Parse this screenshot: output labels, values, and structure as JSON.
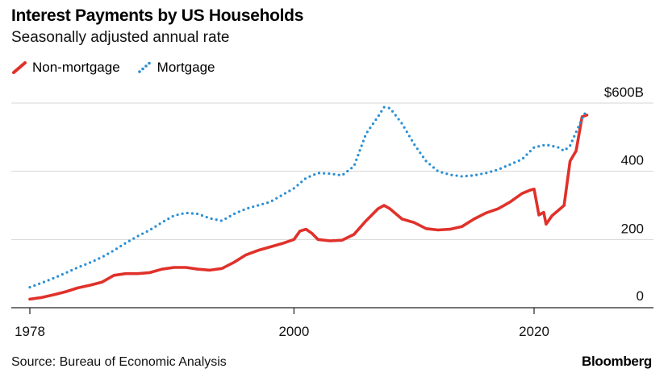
{
  "header": {
    "title": "Interest Payments by US Households",
    "subtitle": "Seasonally adjusted annual rate"
  },
  "legend": [
    {
      "label": "Non-mortgage",
      "color": "#e0312a",
      "style": "solid"
    },
    {
      "label": "Mortgage",
      "color": "#2a8fd4",
      "style": "dotted"
    }
  ],
  "footer": {
    "source": "Source: Bureau of Economic Analysis",
    "brand": "Bloomberg"
  },
  "chart_data": {
    "type": "line",
    "title": "Interest Payments by US Households",
    "subtitle": "Seasonally adjusted annual rate",
    "xlim": [
      1978,
      2026.5
    ],
    "ylim": [
      0,
      600
    ],
    "x_ticks": [
      {
        "value": 1978,
        "label": "1978"
      },
      {
        "value": 2000,
        "label": "2000"
      },
      {
        "value": 2020,
        "label": "2020"
      }
    ],
    "y_ticks": [
      {
        "value": 0,
        "label": "0"
      },
      {
        "value": 200,
        "label": "200"
      },
      {
        "value": 400,
        "label": "400"
      },
      {
        "value": 600,
        "label": "$600B"
      }
    ],
    "grid": "horizontal",
    "legend_position": "top-left",
    "series": [
      {
        "name": "Non-mortgage",
        "color": "#e0312a",
        "style": "solid",
        "points": [
          [
            1978,
            25
          ],
          [
            1979,
            30
          ],
          [
            1980,
            38
          ],
          [
            1981,
            47
          ],
          [
            1982,
            58
          ],
          [
            1983,
            66
          ],
          [
            1984,
            75
          ],
          [
            1985,
            95
          ],
          [
            1986,
            100
          ],
          [
            1987,
            100
          ],
          [
            1988,
            103
          ],
          [
            1989,
            113
          ],
          [
            1990,
            118
          ],
          [
            1991,
            118
          ],
          [
            1992,
            113
          ],
          [
            1993,
            110
          ],
          [
            1994,
            115
          ],
          [
            1995,
            133
          ],
          [
            1996,
            155
          ],
          [
            1997,
            168
          ],
          [
            1998,
            178
          ],
          [
            1999,
            188
          ],
          [
            2000,
            200
          ],
          [
            2000.5,
            225
          ],
          [
            2001,
            230
          ],
          [
            2001.5,
            218
          ],
          [
            2002,
            200
          ],
          [
            2003,
            196
          ],
          [
            2004,
            198
          ],
          [
            2005,
            215
          ],
          [
            2006,
            255
          ],
          [
            2007,
            290
          ],
          [
            2007.5,
            300
          ],
          [
            2008,
            290
          ],
          [
            2009,
            260
          ],
          [
            2010,
            250
          ],
          [
            2011,
            232
          ],
          [
            2012,
            228
          ],
          [
            2013,
            230
          ],
          [
            2014,
            238
          ],
          [
            2015,
            260
          ],
          [
            2016,
            278
          ],
          [
            2017,
            290
          ],
          [
            2018,
            310
          ],
          [
            2019,
            335
          ],
          [
            2019.7,
            345
          ],
          [
            2020,
            348
          ],
          [
            2020.4,
            272
          ],
          [
            2020.8,
            280
          ],
          [
            2021,
            245
          ],
          [
            2021.5,
            270
          ],
          [
            2022,
            285
          ],
          [
            2022.5,
            300
          ],
          [
            2023,
            430
          ],
          [
            2023.5,
            460
          ],
          [
            2024,
            560
          ],
          [
            2024.4,
            565
          ]
        ]
      },
      {
        "name": "Mortgage",
        "color": "#2a8fd4",
        "style": "dotted",
        "points": [
          [
            1978,
            60
          ],
          [
            1979,
            73
          ],
          [
            1980,
            87
          ],
          [
            1981,
            102
          ],
          [
            1982,
            118
          ],
          [
            1983,
            132
          ],
          [
            1984,
            148
          ],
          [
            1985,
            168
          ],
          [
            1986,
            190
          ],
          [
            1987,
            210
          ],
          [
            1988,
            228
          ],
          [
            1989,
            250
          ],
          [
            1990,
            270
          ],
          [
            1991,
            278
          ],
          [
            1992,
            275
          ],
          [
            1993,
            262
          ],
          [
            1994,
            255
          ],
          [
            1995,
            275
          ],
          [
            1996,
            290
          ],
          [
            1997,
            300
          ],
          [
            1998,
            310
          ],
          [
            1999,
            330
          ],
          [
            2000,
            350
          ],
          [
            2001,
            380
          ],
          [
            2002,
            395
          ],
          [
            2003,
            393
          ],
          [
            2004,
            388
          ],
          [
            2005,
            415
          ],
          [
            2006,
            510
          ],
          [
            2007,
            560
          ],
          [
            2007.5,
            588
          ],
          [
            2008,
            585
          ],
          [
            2009,
            540
          ],
          [
            2010,
            480
          ],
          [
            2011,
            430
          ],
          [
            2012,
            400
          ],
          [
            2013,
            390
          ],
          [
            2014,
            385
          ],
          [
            2015,
            388
          ],
          [
            2016,
            395
          ],
          [
            2017,
            405
          ],
          [
            2018,
            420
          ],
          [
            2019,
            435
          ],
          [
            2020,
            470
          ],
          [
            2021,
            478
          ],
          [
            2022,
            470
          ],
          [
            2022.5,
            460
          ],
          [
            2023,
            475
          ],
          [
            2023.5,
            515
          ],
          [
            2024,
            555
          ],
          [
            2024.4,
            580
          ]
        ]
      }
    ]
  }
}
